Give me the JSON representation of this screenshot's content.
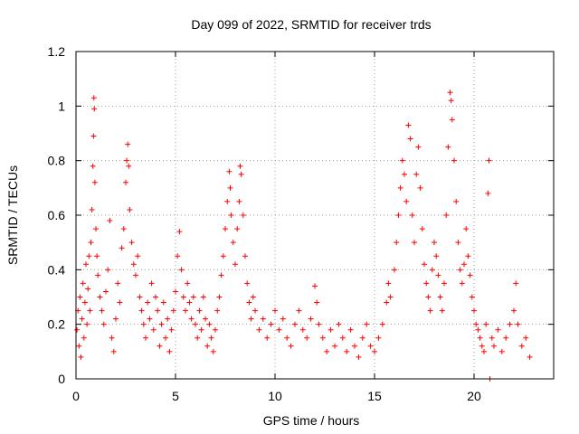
{
  "chart_data": {
    "type": "scatter",
    "title": "Day 099 of 2022, SRMTID for receiver trds",
    "xlabel": "GPS time / hours",
    "ylabel": "SRMTID / TECUs",
    "xlim": [
      0,
      24
    ],
    "ylim": [
      0,
      1.2
    ],
    "grid": true,
    "marker": "+",
    "color": "#ff0000",
    "x_ticks": [
      0,
      5,
      10,
      15,
      20
    ],
    "x_tick_labels": [
      "0",
      "5",
      "10",
      "15",
      "20"
    ],
    "y_ticks": [
      0,
      0.2,
      0.4,
      0.6,
      0.8,
      1.0,
      1.2
    ],
    "y_tick_labels": [
      "0",
      "0.2",
      "0.4",
      "0.6",
      "0.8",
      "1",
      "1.2"
    ],
    "series": [
      {
        "name": "SRMTID",
        "points": [
          [
            0.05,
            0.18
          ],
          [
            0.1,
            0.25
          ],
          [
            0.15,
            0.12
          ],
          [
            0.2,
            0.3
          ],
          [
            0.25,
            0.08
          ],
          [
            0.3,
            0.22
          ],
          [
            0.35,
            0.35
          ],
          [
            0.4,
            0.15
          ],
          [
            0.45,
            0.28
          ],
          [
            0.5,
            0.42
          ],
          [
            0.55,
            0.2
          ],
          [
            0.6,
            0.33
          ],
          [
            0.65,
            0.45
          ],
          [
            0.7,
            0.25
          ],
          [
            0.75,
            0.5
          ],
          [
            0.8,
            0.62
          ],
          [
            0.85,
            0.78
          ],
          [
            0.88,
            0.89
          ],
          [
            0.9,
            1.03
          ],
          [
            0.92,
            0.99
          ],
          [
            0.95,
            0.72
          ],
          [
            1.0,
            0.55
          ],
          [
            1.05,
            0.45
          ],
          [
            1.1,
            0.38
          ],
          [
            1.2,
            0.3
          ],
          [
            1.3,
            0.25
          ],
          [
            1.4,
            0.2
          ],
          [
            1.5,
            0.32
          ],
          [
            1.6,
            0.4
          ],
          [
            1.7,
            0.58
          ],
          [
            1.8,
            0.15
          ],
          [
            1.9,
            0.1
          ],
          [
            2.0,
            0.22
          ],
          [
            2.1,
            0.35
          ],
          [
            2.2,
            0.28
          ],
          [
            2.3,
            0.48
          ],
          [
            2.4,
            0.55
          ],
          [
            2.5,
            0.72
          ],
          [
            2.55,
            0.8
          ],
          [
            2.6,
            0.86
          ],
          [
            2.65,
            0.78
          ],
          [
            2.7,
            0.62
          ],
          [
            2.8,
            0.5
          ],
          [
            2.9,
            0.42
          ],
          [
            3.0,
            0.38
          ],
          [
            3.1,
            0.45
          ],
          [
            3.2,
            0.3
          ],
          [
            3.3,
            0.25
          ],
          [
            3.4,
            0.2
          ],
          [
            3.5,
            0.15
          ],
          [
            3.6,
            0.28
          ],
          [
            3.7,
            0.22
          ],
          [
            3.8,
            0.35
          ],
          [
            3.9,
            0.18
          ],
          [
            4.0,
            0.3
          ],
          [
            4.1,
            0.25
          ],
          [
            4.2,
            0.12
          ],
          [
            4.3,
            0.2
          ],
          [
            4.4,
            0.28
          ],
          [
            4.5,
            0.15
          ],
          [
            4.6,
            0.22
          ],
          [
            4.7,
            0.1
          ],
          [
            4.8,
            0.18
          ],
          [
            4.9,
            0.25
          ],
          [
            5.0,
            0.32
          ],
          [
            5.1,
            0.45
          ],
          [
            5.2,
            0.54
          ],
          [
            5.3,
            0.4
          ],
          [
            5.4,
            0.3
          ],
          [
            5.5,
            0.25
          ],
          [
            5.6,
            0.35
          ],
          [
            5.7,
            0.28
          ],
          [
            5.8,
            0.22
          ],
          [
            5.9,
            0.3
          ],
          [
            6.0,
            0.2
          ],
          [
            6.1,
            0.15
          ],
          [
            6.2,
            0.25
          ],
          [
            6.3,
            0.18
          ],
          [
            6.4,
            0.3
          ],
          [
            6.5,
            0.22
          ],
          [
            6.6,
            0.12
          ],
          [
            6.7,
            0.2
          ],
          [
            6.8,
            0.15
          ],
          [
            6.9,
            0.1
          ],
          [
            7.0,
            0.18
          ],
          [
            7.1,
            0.25
          ],
          [
            7.2,
            0.3
          ],
          [
            7.3,
            0.38
          ],
          [
            7.4,
            0.45
          ],
          [
            7.5,
            0.55
          ],
          [
            7.6,
            0.65
          ],
          [
            7.7,
            0.76
          ],
          [
            7.75,
            0.7
          ],
          [
            7.8,
            0.6
          ],
          [
            7.9,
            0.5
          ],
          [
            8.0,
            0.42
          ],
          [
            8.1,
            0.55
          ],
          [
            8.2,
            0.65
          ],
          [
            8.25,
            0.78
          ],
          [
            8.3,
            0.75
          ],
          [
            8.4,
            0.6
          ],
          [
            8.5,
            0.45
          ],
          [
            8.6,
            0.35
          ],
          [
            8.7,
            0.28
          ],
          [
            8.8,
            0.22
          ],
          [
            8.9,
            0.3
          ],
          [
            9.0,
            0.25
          ],
          [
            9.2,
            0.18
          ],
          [
            9.4,
            0.22
          ],
          [
            9.6,
            0.15
          ],
          [
            9.8,
            0.2
          ],
          [
            10.0,
            0.25
          ],
          [
            10.2,
            0.18
          ],
          [
            10.4,
            0.22
          ],
          [
            10.6,
            0.15
          ],
          [
            10.8,
            0.12
          ],
          [
            11.0,
            0.2
          ],
          [
            11.2,
            0.25
          ],
          [
            11.4,
            0.18
          ],
          [
            11.6,
            0.15
          ],
          [
            11.8,
            0.22
          ],
          [
            12.0,
            0.34
          ],
          [
            12.1,
            0.28
          ],
          [
            12.2,
            0.2
          ],
          [
            12.4,
            0.15
          ],
          [
            12.6,
            0.1
          ],
          [
            12.8,
            0.18
          ],
          [
            13.0,
            0.12
          ],
          [
            13.2,
            0.2
          ],
          [
            13.4,
            0.15
          ],
          [
            13.6,
            0.1
          ],
          [
            13.8,
            0.18
          ],
          [
            14.0,
            0.12
          ],
          [
            14.2,
            0.08
          ],
          [
            14.4,
            0.15
          ],
          [
            14.6,
            0.2
          ],
          [
            14.8,
            0.12
          ],
          [
            15.0,
            0.1
          ],
          [
            15.2,
            0.15
          ],
          [
            15.4,
            0.2
          ],
          [
            15.6,
            0.28
          ],
          [
            15.7,
            0.35
          ],
          [
            15.8,
            0.3
          ],
          [
            16.0,
            0.4
          ],
          [
            16.1,
            0.5
          ],
          [
            16.2,
            0.6
          ],
          [
            16.3,
            0.7
          ],
          [
            16.4,
            0.8
          ],
          [
            16.5,
            0.75
          ],
          [
            16.6,
            0.65
          ],
          [
            16.7,
            0.93
          ],
          [
            16.8,
            0.88
          ],
          [
            16.9,
            0.6
          ],
          [
            17.0,
            0.5
          ],
          [
            17.1,
            0.75
          ],
          [
            17.2,
            0.85
          ],
          [
            17.3,
            0.7
          ],
          [
            17.4,
            0.55
          ],
          [
            17.5,
            0.42
          ],
          [
            17.6,
            0.35
          ],
          [
            17.7,
            0.3
          ],
          [
            17.8,
            0.25
          ],
          [
            17.9,
            0.4
          ],
          [
            18.0,
            0.5
          ],
          [
            18.1,
            0.45
          ],
          [
            18.2,
            0.38
          ],
          [
            18.3,
            0.3
          ],
          [
            18.4,
            0.25
          ],
          [
            18.5,
            0.35
          ],
          [
            18.6,
            0.6
          ],
          [
            18.7,
            0.85
          ],
          [
            18.8,
            1.05
          ],
          [
            18.85,
            1.02
          ],
          [
            18.9,
            0.95
          ],
          [
            19.0,
            0.8
          ],
          [
            19.1,
            0.65
          ],
          [
            19.2,
            0.5
          ],
          [
            19.3,
            0.4
          ],
          [
            19.4,
            0.35
          ],
          [
            19.5,
            0.42
          ],
          [
            19.6,
            0.55
          ],
          [
            19.7,
            0.45
          ],
          [
            19.8,
            0.38
          ],
          [
            19.9,
            0.3
          ],
          [
            20.0,
            0.25
          ],
          [
            20.1,
            0.2
          ],
          [
            20.2,
            0.18
          ],
          [
            20.3,
            0.15
          ],
          [
            20.4,
            0.12
          ],
          [
            20.5,
            0.1
          ],
          [
            20.6,
            0.2
          ],
          [
            20.7,
            0.68
          ],
          [
            20.75,
            0.8
          ],
          [
            20.8,
            0.0
          ],
          [
            20.9,
            0.15
          ],
          [
            21.0,
            0.12
          ],
          [
            21.2,
            0.18
          ],
          [
            21.4,
            0.1
          ],
          [
            21.6,
            0.15
          ],
          [
            21.8,
            0.2
          ],
          [
            22.0,
            0.25
          ],
          [
            22.1,
            0.35
          ],
          [
            22.2,
            0.2
          ],
          [
            22.4,
            0.12
          ],
          [
            22.6,
            0.15
          ],
          [
            22.8,
            0.08
          ]
        ]
      }
    ]
  }
}
